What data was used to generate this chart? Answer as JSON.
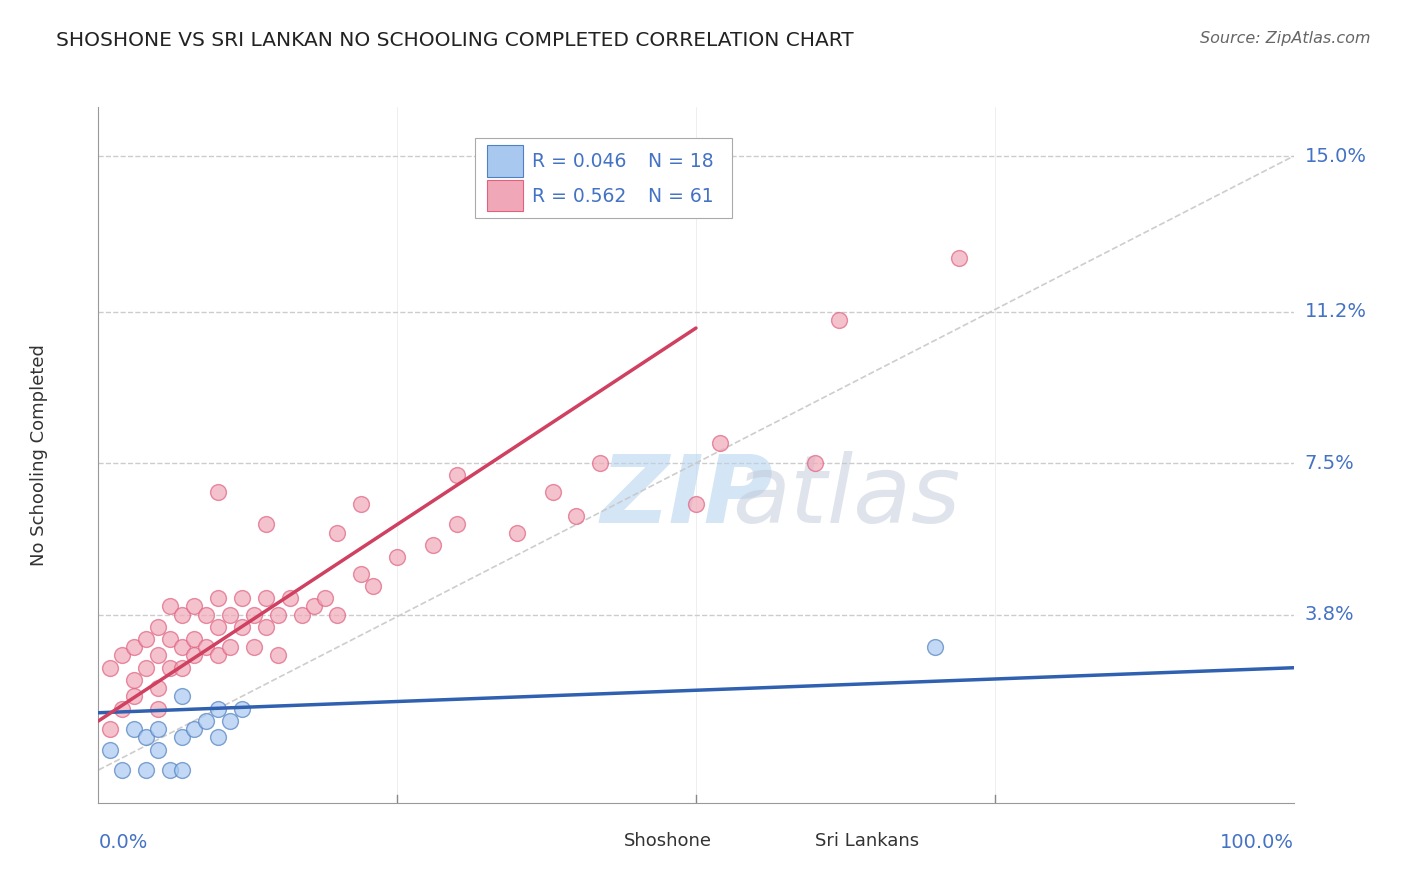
{
  "title": "SHOSHONE VS SRI LANKAN NO SCHOOLING COMPLETED CORRELATION CHART",
  "source": "Source: ZipAtlas.com",
  "ylabel": "No Schooling Completed",
  "ytick_vals": [
    0.038,
    0.075,
    0.112,
    0.15
  ],
  "ytick_labels": [
    "3.8%",
    "7.5%",
    "11.2%",
    "15.0%"
  ],
  "xlim": [
    0.0,
    1.0
  ],
  "ylim": [
    -0.008,
    0.162
  ],
  "legend_r1": "R = 0.046",
  "legend_n1": "N = 18",
  "legend_r2": "R = 0.562",
  "legend_n2": "N = 61",
  "color_blue": "#A8C8F0",
  "color_pink": "#F0A8B8",
  "color_blue_dark": "#5080C0",
  "color_pink_dark": "#E06080",
  "color_blue_line": "#3060B0",
  "color_pink_line": "#D04060",
  "color_diag": "#C8C8C8",
  "watermark_zip": "ZIP",
  "watermark_atlas": "atlas",
  "shoshone_x": [
    0.01,
    0.02,
    0.03,
    0.04,
    0.04,
    0.05,
    0.05,
    0.06,
    0.07,
    0.07,
    0.07,
    0.08,
    0.09,
    0.1,
    0.1,
    0.11,
    0.12,
    0.7
  ],
  "shoshone_y": [
    0.005,
    0.0,
    0.01,
    0.008,
    0.0,
    0.01,
    0.005,
    0.0,
    0.018,
    0.008,
    0.0,
    0.01,
    0.012,
    0.015,
    0.008,
    0.012,
    0.015,
    0.03
  ],
  "srilanka_x": [
    0.01,
    0.01,
    0.02,
    0.02,
    0.03,
    0.03,
    0.03,
    0.04,
    0.04,
    0.05,
    0.05,
    0.05,
    0.05,
    0.06,
    0.06,
    0.06,
    0.07,
    0.07,
    0.07,
    0.08,
    0.08,
    0.08,
    0.09,
    0.09,
    0.1,
    0.1,
    0.1,
    0.11,
    0.11,
    0.12,
    0.12,
    0.13,
    0.13,
    0.14,
    0.14,
    0.15,
    0.15,
    0.16,
    0.17,
    0.18,
    0.19,
    0.2,
    0.22,
    0.23,
    0.25,
    0.28,
    0.3,
    0.35,
    0.4,
    0.5,
    0.6,
    0.1,
    0.14,
    0.2,
    0.22,
    0.3,
    0.38,
    0.42,
    0.52,
    0.62,
    0.72
  ],
  "srilanka_y": [
    0.01,
    0.025,
    0.015,
    0.028,
    0.018,
    0.03,
    0.022,
    0.025,
    0.032,
    0.02,
    0.028,
    0.035,
    0.015,
    0.032,
    0.025,
    0.04,
    0.03,
    0.038,
    0.025,
    0.032,
    0.04,
    0.028,
    0.038,
    0.03,
    0.035,
    0.042,
    0.028,
    0.038,
    0.03,
    0.042,
    0.035,
    0.038,
    0.03,
    0.042,
    0.035,
    0.038,
    0.028,
    0.042,
    0.038,
    0.04,
    0.042,
    0.038,
    0.048,
    0.045,
    0.052,
    0.055,
    0.06,
    0.058,
    0.062,
    0.065,
    0.075,
    0.068,
    0.06,
    0.058,
    0.065,
    0.072,
    0.068,
    0.075,
    0.08,
    0.11,
    0.125
  ],
  "blue_line_x": [
    0.0,
    1.0
  ],
  "blue_line_y": [
    0.014,
    0.025
  ],
  "pink_line_x": [
    0.0,
    0.5
  ],
  "pink_line_y": [
    0.012,
    0.108
  ],
  "diag_line_x": [
    0.0,
    1.0
  ],
  "diag_line_y": [
    0.0,
    0.15
  ]
}
